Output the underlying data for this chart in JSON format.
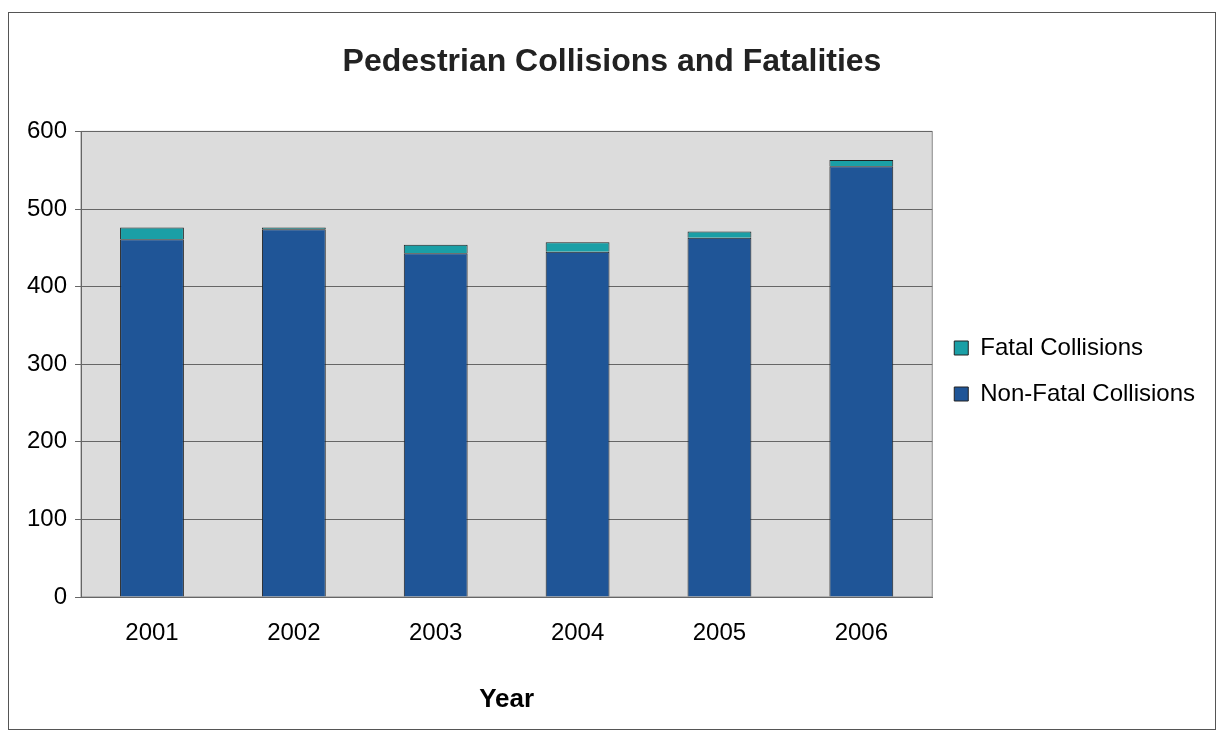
{
  "chart_data": {
    "type": "bar",
    "title": "Pedestrian Collisions and Fatalities",
    "xlabel": "Year",
    "categories": [
      "2001",
      "2002",
      "2003",
      "2004",
      "2005",
      "2006"
    ],
    "stacked": true,
    "series": [
      {
        "name": "Non-Fatal Collisions",
        "color": "#1f5597",
        "values": [
          461,
          474,
          443,
          445,
          463,
          555
        ]
      },
      {
        "name": "Fatal Collisions",
        "color": "#1a9fa6",
        "values": [
          15,
          2,
          11,
          12,
          8,
          8
        ]
      }
    ],
    "ylim": [
      0,
      600
    ],
    "yticks": [
      0,
      100,
      200,
      300,
      400,
      500,
      600
    ],
    "grid": "y",
    "legend": "right"
  }
}
